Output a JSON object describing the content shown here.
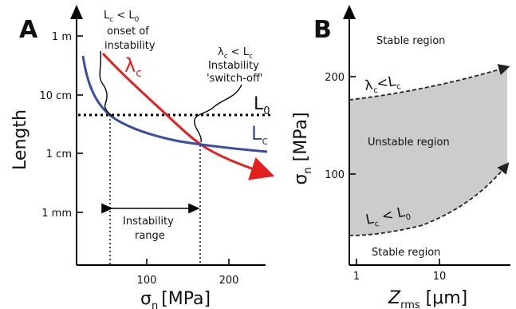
{
  "chart_data": [
    {
      "type": "line",
      "panel": "A",
      "ylabel": "Length",
      "xlabel": {
        "main": "σ",
        "sub": "n",
        "units": "[MPa]"
      },
      "x_ticks": [
        "100",
        "200"
      ],
      "y_ticks": [
        "1 m",
        "10 cm",
        "1 cm",
        "1 mm"
      ],
      "y_scale": "log",
      "series": [
        {
          "name": "λ",
          "name_sub": "c",
          "color": "#e4201f",
          "x": [
            45,
            70,
            100,
            130,
            165,
            200,
            240
          ],
          "y_m": [
            0.55,
            0.26,
            0.11,
            0.05,
            0.0155,
            0.0078,
            0.0035
          ]
        },
        {
          "name": "L",
          "name_sub": "c",
          "color": "#3a4ea1",
          "x": [
            15,
            30,
            50,
            80,
            110,
            165,
            200,
            240
          ],
          "y_m": [
            0.52,
            0.12,
            0.045,
            0.025,
            0.02,
            0.0155,
            0.013,
            0.011
          ]
        },
        {
          "name": "L",
          "name_sub": "0",
          "color": "#000000",
          "style": "dotted",
          "x": [
            40,
            250
          ],
          "y_m": [
            0.045,
            0.045
          ]
        }
      ],
      "annotations": {
        "onset": {
          "line1": {
            "a": "L",
            "a_sub": "c",
            "op": " < ",
            "b": "L",
            "b_sub": "0"
          },
          "line2": "onset of",
          "line3": "instability",
          "sigma": 50
        },
        "switchoff": {
          "line1": {
            "a": "λ",
            "a_sub": "c",
            "op": " < ",
            "b": "L",
            "b_sub": "c"
          },
          "line2": "Instability",
          "line3": "'switch-off'",
          "sigma": 165
        },
        "range": {
          "line1": "Instability",
          "line2": "range"
        }
      }
    },
    {
      "type": "area",
      "panel": "B",
      "ylabel": {
        "main": "σ",
        "sub": "n",
        "units": " [MPa]"
      },
      "xlabel": {
        "main": "Z",
        "sub": "rms",
        "units": " [μm]"
      },
      "x_scale": "log",
      "x_ticks": [
        "1",
        "10"
      ],
      "y_ticks": [
        "200",
        "100"
      ],
      "upper_boundary": {
        "label": {
          "a": "λ",
          "a_sub": "c",
          "op": "<",
          "b": "L",
          "b_sub": "c"
        },
        "x_um": [
          1,
          3,
          10,
          30,
          60
        ],
        "y_mpa": [
          178,
          185,
          193,
          203,
          210
        ]
      },
      "lower_boundary": {
        "label": {
          "a": "L",
          "a_sub": "c",
          "op": " < ",
          "b": "L",
          "b_sub": "0"
        },
        "x_um": [
          1,
          3,
          10,
          30,
          60
        ],
        "y_mpa": [
          40,
          44,
          58,
          80,
          110
        ]
      },
      "regions": [
        "Stable region",
        "Unstable region",
        "Stable region"
      ],
      "fill_color": "#cccccc"
    }
  ]
}
